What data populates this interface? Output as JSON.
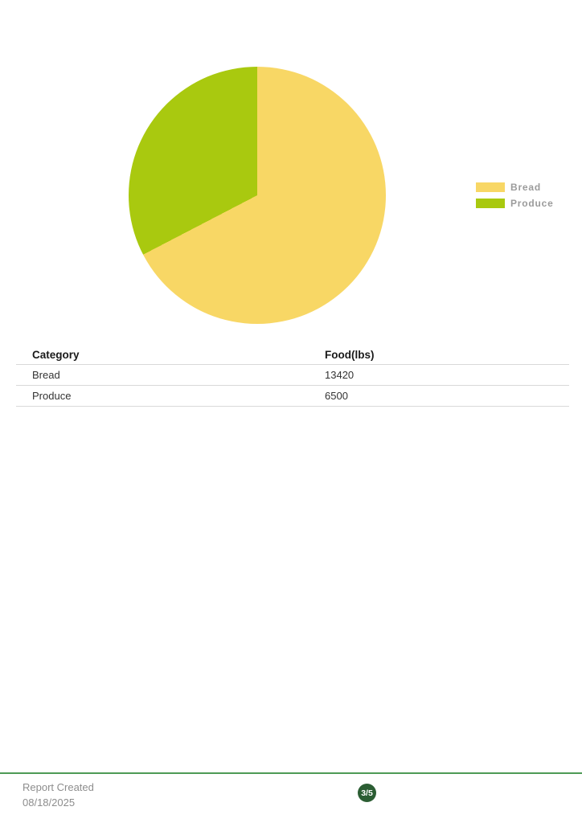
{
  "chart_data": {
    "type": "pie",
    "categories": [
      "Bread",
      "Produce"
    ],
    "values": [
      13420,
      6500
    ],
    "colors": [
      "#F8D765",
      "#A9C90F"
    ],
    "title": "",
    "legend_position": "right",
    "start_angle_deg": 0,
    "direction": "clockwise"
  },
  "table": {
    "headers": [
      "Category",
      "Food(lbs)"
    ],
    "rows": [
      {
        "category": "Bread",
        "value": "13420"
      },
      {
        "category": "Produce",
        "value": "6500"
      }
    ]
  },
  "footer": {
    "report_created_label": "Report Created",
    "report_date": "08/18/2025",
    "page_indicator": "3/5",
    "line_color": "#4d9a55",
    "badge_color": "#2b5d33"
  }
}
